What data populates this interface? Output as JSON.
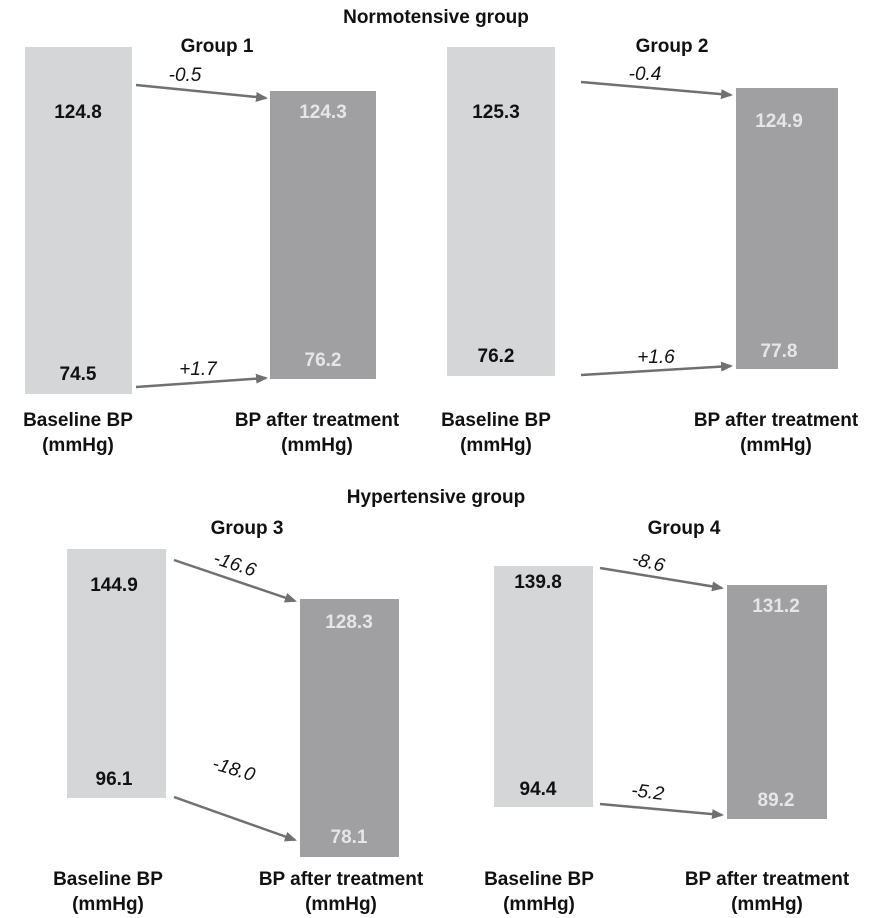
{
  "chart_data": {
    "type": "bar",
    "sections": [
      {
        "title": "Normotensive group"
      },
      {
        "title": "Hypertensive group"
      }
    ],
    "bar_labels": {
      "baseline": [
        "Baseline BP",
        "(mmHg)"
      ],
      "after": [
        "BP after treatment",
        "(mmHg)"
      ]
    },
    "colors": {
      "baseline_bar": "#d5d6d8",
      "after_bar": "#a0a0a3",
      "arrow": "#707070"
    },
    "groups": [
      {
        "name": "Group 1",
        "section": 0,
        "baseline": {
          "systolic": "124.8",
          "diastolic": "74.5"
        },
        "after": {
          "systolic": "124.3",
          "diastolic": "76.2"
        },
        "change": {
          "systolic": "-0.5",
          "diastolic": "+1.7"
        }
      },
      {
        "name": "Group 2",
        "section": 0,
        "baseline": {
          "systolic": "125.3",
          "diastolic": "76.2"
        },
        "after": {
          "systolic": "124.9",
          "diastolic": "77.8"
        },
        "change": {
          "systolic": "-0.4",
          "diastolic": "+1.6"
        }
      },
      {
        "name": "Group 3",
        "section": 1,
        "baseline": {
          "systolic": "144.9",
          "diastolic": "96.1"
        },
        "after": {
          "systolic": "128.3",
          "diastolic": "78.1"
        },
        "change": {
          "systolic": "-16.6",
          "diastolic": "-18.0"
        }
      },
      {
        "name": "Group 4",
        "section": 1,
        "baseline": {
          "systolic": "139.8",
          "diastolic": "94.4"
        },
        "after": {
          "systolic": "131.2",
          "diastolic": "89.2"
        },
        "change": {
          "systolic": "-8.6",
          "diastolic": "-5.2"
        }
      }
    ]
  }
}
